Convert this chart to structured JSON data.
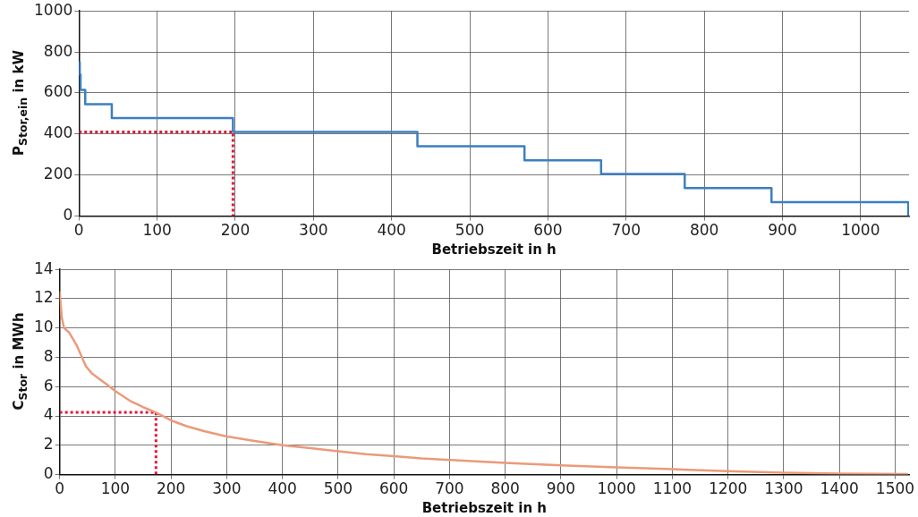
{
  "chart_data": [
    {
      "type": "step",
      "xlabel": "Betriebszeit in h",
      "ylabel": "P$_{Stor,ein}$ in kW",
      "xlim": [
        0,
        1062
      ],
      "xticks": [
        0,
        100,
        200,
        300,
        400,
        500,
        600,
        700,
        800,
        900,
        1000
      ],
      "ylim": [
        0,
        1000
      ],
      "yticks": [
        0,
        200,
        400,
        600,
        800,
        1000
      ],
      "grid": true,
      "legend": false,
      "marker": "none",
      "series": [
        {
          "color": "#3d7fbf",
          "x": [
            0,
            1,
            2,
            8,
            42,
            197,
            433,
            570,
            668,
            775,
            886,
            1061
          ],
          "values": [
            750,
            690,
            615,
            545,
            478,
            410,
            340,
            272,
            205,
            137,
            68,
            0
          ]
        },
        {
          "type": "line",
          "line_style": "dotted",
          "color": "#e0173c",
          "x": [
            0,
            197,
            197
          ],
          "values": [
            410,
            410,
            0
          ]
        }
      ]
    },
    {
      "type": "line",
      "xlabel": "Betriebszeit in h",
      "ylabel": "C$_{Stor}$ in MWh",
      "xlim": [
        0,
        1525
      ],
      "xticks": [
        0,
        100,
        200,
        300,
        400,
        500,
        600,
        700,
        800,
        900,
        1000,
        1100,
        1200,
        1300,
        1400,
        1500
      ],
      "ylim": [
        0,
        14
      ],
      "yticks": [
        0,
        2,
        4,
        6,
        8,
        10,
        12,
        14
      ],
      "grid": true,
      "legend": false,
      "marker": "none",
      "series": [
        {
          "color": "#eb9a7a",
          "x": [
            0,
            4,
            8,
            17,
            31,
            39,
            47,
            58,
            83,
            100,
            128,
            150,
            172,
            200,
            228,
            261,
            300,
            350,
            400,
            450,
            500,
            550,
            600,
            650,
            700,
            800,
            900,
            1000,
            1100,
            1200,
            1300,
            1400,
            1523
          ],
          "values": [
            12.5,
            10.7,
            10.0,
            9.7,
            8.8,
            8.1,
            7.4,
            6.9,
            6.2,
            5.7,
            5.0,
            4.6,
            4.25,
            3.7,
            3.3,
            2.95,
            2.6,
            2.3,
            2.0,
            1.8,
            1.6,
            1.4,
            1.25,
            1.1,
            1.0,
            0.8,
            0.63,
            0.5,
            0.37,
            0.24,
            0.13,
            0.07,
            0.04
          ]
        },
        {
          "line_style": "dotted",
          "color": "#e0173c",
          "x": [
            0,
            173,
            173
          ],
          "values": [
            4.25,
            4.25,
            0
          ]
        }
      ]
    }
  ]
}
